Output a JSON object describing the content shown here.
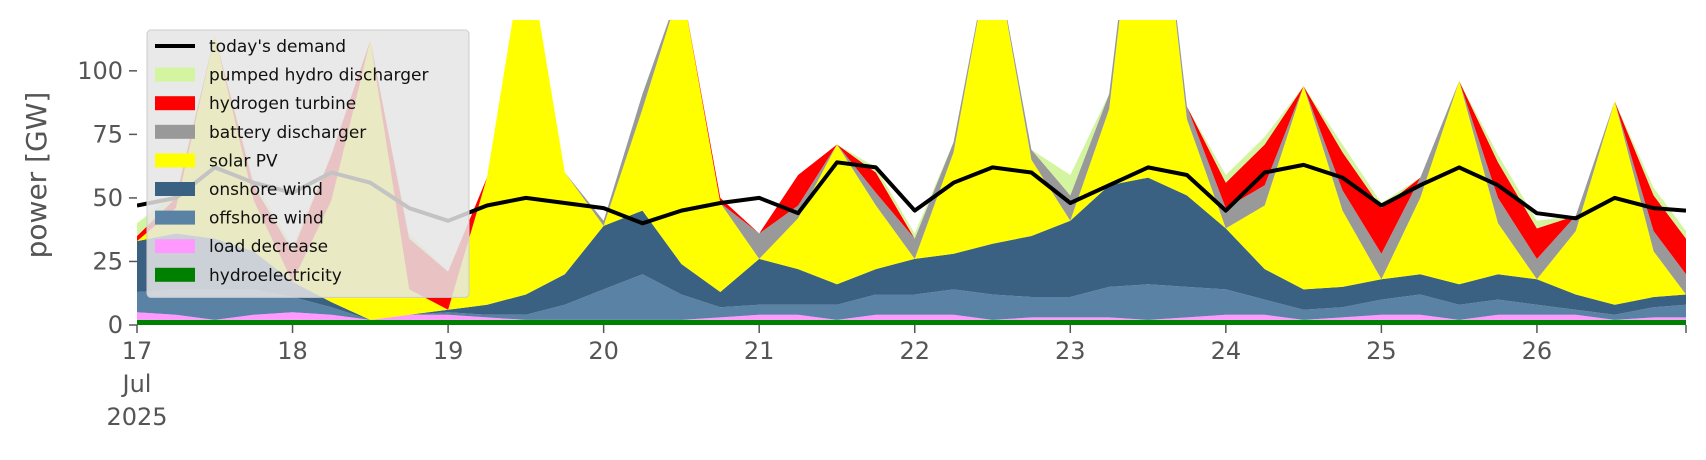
{
  "chart_data": {
    "type": "area",
    "title": "",
    "xlabel": "",
    "ylabel": "power [GW]",
    "ylim": [
      0,
      120
    ],
    "xlim_days": [
      "2025-07-17T00:00",
      "2025-07-26T23:00"
    ],
    "yticks": [
      0,
      25,
      50,
      75,
      100
    ],
    "xticks": [
      "17",
      "18",
      "19",
      "20",
      "21",
      "22",
      "23",
      "24",
      "25",
      "26"
    ],
    "xtick_month": "Jul",
    "xtick_year": "2025",
    "grid": false,
    "legend_position": "top-left",
    "legend": [
      {
        "label": "today's demand",
        "kind": "line",
        "color": "#000000"
      },
      {
        "label": "pumped hydro discharger",
        "kind": "area",
        "color": "#d4f5a0"
      },
      {
        "label": "hydrogen turbine",
        "kind": "area",
        "color": "#ff0000"
      },
      {
        "label": "battery discharger",
        "kind": "area",
        "color": "#999999"
      },
      {
        "label": "solar PV",
        "kind": "area",
        "color": "#ffff00"
      },
      {
        "label": "onshore wind",
        "kind": "area",
        "color": "#3b6182"
      },
      {
        "label": "offshore wind",
        "kind": "area",
        "color": "#5a82a5"
      },
      {
        "label": "load decrease",
        "kind": "area",
        "color": "#ff99ff"
      },
      {
        "label": "hydroelectricity",
        "kind": "area",
        "color": "#008000"
      }
    ],
    "x": [
      "2025-07-17T00:00",
      "2025-07-17T06:00",
      "2025-07-17T12:00",
      "2025-07-17T18:00",
      "2025-07-18T00:00",
      "2025-07-18T06:00",
      "2025-07-18T12:00",
      "2025-07-18T18:00",
      "2025-07-19T00:00",
      "2025-07-19T06:00",
      "2025-07-19T12:00",
      "2025-07-19T18:00",
      "2025-07-20T00:00",
      "2025-07-20T06:00",
      "2025-07-20T12:00",
      "2025-07-20T18:00",
      "2025-07-21T00:00",
      "2025-07-21T06:00",
      "2025-07-21T12:00",
      "2025-07-21T18:00",
      "2025-07-22T00:00",
      "2025-07-22T06:00",
      "2025-07-22T12:00",
      "2025-07-22T18:00",
      "2025-07-23T00:00",
      "2025-07-23T06:00",
      "2025-07-23T12:00",
      "2025-07-23T18:00",
      "2025-07-24T00:00",
      "2025-07-24T06:00",
      "2025-07-24T12:00",
      "2025-07-24T18:00",
      "2025-07-25T00:00",
      "2025-07-25T06:00",
      "2025-07-25T12:00",
      "2025-07-25T18:00",
      "2025-07-26T00:00",
      "2025-07-26T06:00",
      "2025-07-26T12:00",
      "2025-07-26T18:00",
      "2025-07-26T23:00"
    ],
    "series": [
      {
        "name": "hydroelectricity",
        "color": "#008000",
        "values": [
          2,
          2,
          2,
          2,
          2,
          2,
          2,
          2,
          2,
          2,
          2,
          2,
          2,
          2,
          2,
          2,
          2,
          2,
          2,
          2,
          2,
          2,
          2,
          2,
          2,
          2,
          2,
          2,
          2,
          2,
          2,
          2,
          2,
          2,
          2,
          2,
          2,
          2,
          2,
          2,
          2
        ]
      },
      {
        "name": "load decrease",
        "color": "#ff99ff",
        "values": [
          3,
          2,
          0,
          2,
          3,
          2,
          0,
          2,
          2,
          1,
          0,
          0,
          0,
          0,
          0,
          1,
          2,
          2,
          0,
          2,
          2,
          2,
          0,
          1,
          1,
          1,
          0,
          1,
          2,
          2,
          0,
          1,
          2,
          2,
          0,
          2,
          2,
          2,
          0,
          1,
          1
        ]
      },
      {
        "name": "offshore wind",
        "color": "#5a82a5",
        "values": [
          8,
          10,
          12,
          10,
          6,
          3,
          0,
          0,
          1,
          1,
          2,
          6,
          12,
          18,
          10,
          4,
          4,
          4,
          6,
          8,
          8,
          10,
          10,
          8,
          8,
          12,
          14,
          12,
          10,
          6,
          4,
          4,
          6,
          8,
          6,
          6,
          4,
          2,
          2,
          4,
          5
        ]
      },
      {
        "name": "onshore wind",
        "color": "#3b6182",
        "values": [
          20,
          22,
          20,
          15,
          6,
          2,
          0,
          0,
          1,
          4,
          8,
          12,
          25,
          25,
          12,
          6,
          18,
          14,
          8,
          10,
          14,
          14,
          20,
          24,
          30,
          40,
          42,
          36,
          24,
          12,
          8,
          8,
          8,
          8,
          8,
          10,
          10,
          6,
          4,
          4,
          4
        ]
      },
      {
        "name": "solar PV",
        "color": "#ffff00",
        "values": [
          0,
          10,
          80,
          20,
          0,
          40,
          110,
          10,
          0,
          50,
          140,
          40,
          0,
          40,
          110,
          35,
          0,
          20,
          55,
          25,
          0,
          40,
          120,
          30,
          0,
          30,
          160,
          30,
          0,
          25,
          80,
          30,
          0,
          30,
          80,
          20,
          0,
          25,
          80,
          18,
          0
        ]
      },
      {
        "name": "battery discharger",
        "color": "#999999",
        "values": [
          0,
          0,
          0,
          0,
          0,
          0,
          0,
          0,
          0,
          0,
          0,
          0,
          2,
          6,
          0,
          0,
          10,
          5,
          0,
          5,
          8,
          4,
          0,
          4,
          10,
          6,
          0,
          5,
          8,
          8,
          0,
          8,
          10,
          8,
          0,
          10,
          8,
          6,
          0,
          8,
          8
        ]
      },
      {
        "name": "hydrogen turbine",
        "color": "#ff0000",
        "values": [
          2,
          4,
          0,
          6,
          12,
          18,
          0,
          20,
          15,
          0,
          0,
          0,
          0,
          0,
          0,
          2,
          0,
          12,
          0,
          8,
          0,
          0,
          0,
          0,
          0,
          0,
          0,
          0,
          10,
          16,
          0,
          15,
          18,
          0,
          0,
          14,
          12,
          0,
          0,
          14,
          14
        ]
      },
      {
        "name": "pumped hydro discharger",
        "color": "#d4f5a0",
        "values": [
          5,
          2,
          0,
          2,
          2,
          0,
          0,
          2,
          0,
          0,
          0,
          0,
          0,
          0,
          0,
          0,
          0,
          0,
          0,
          2,
          2,
          0,
          0,
          0,
          8,
          0,
          0,
          0,
          3,
          3,
          0,
          3,
          2,
          0,
          0,
          3,
          3,
          0,
          0,
          3,
          3
        ]
      }
    ],
    "demand": {
      "name": "today's demand",
      "color": "#000000",
      "values": [
        47,
        50,
        62,
        56,
        52,
        60,
        56,
        46,
        41,
        47,
        50,
        48,
        46,
        40,
        45,
        48,
        50,
        44,
        64,
        62,
        45,
        56,
        62,
        60,
        48,
        55,
        62,
        59,
        45,
        60,
        63,
        58,
        47,
        55,
        62,
        55,
        44,
        42,
        50,
        46,
        45
      ]
    }
  }
}
